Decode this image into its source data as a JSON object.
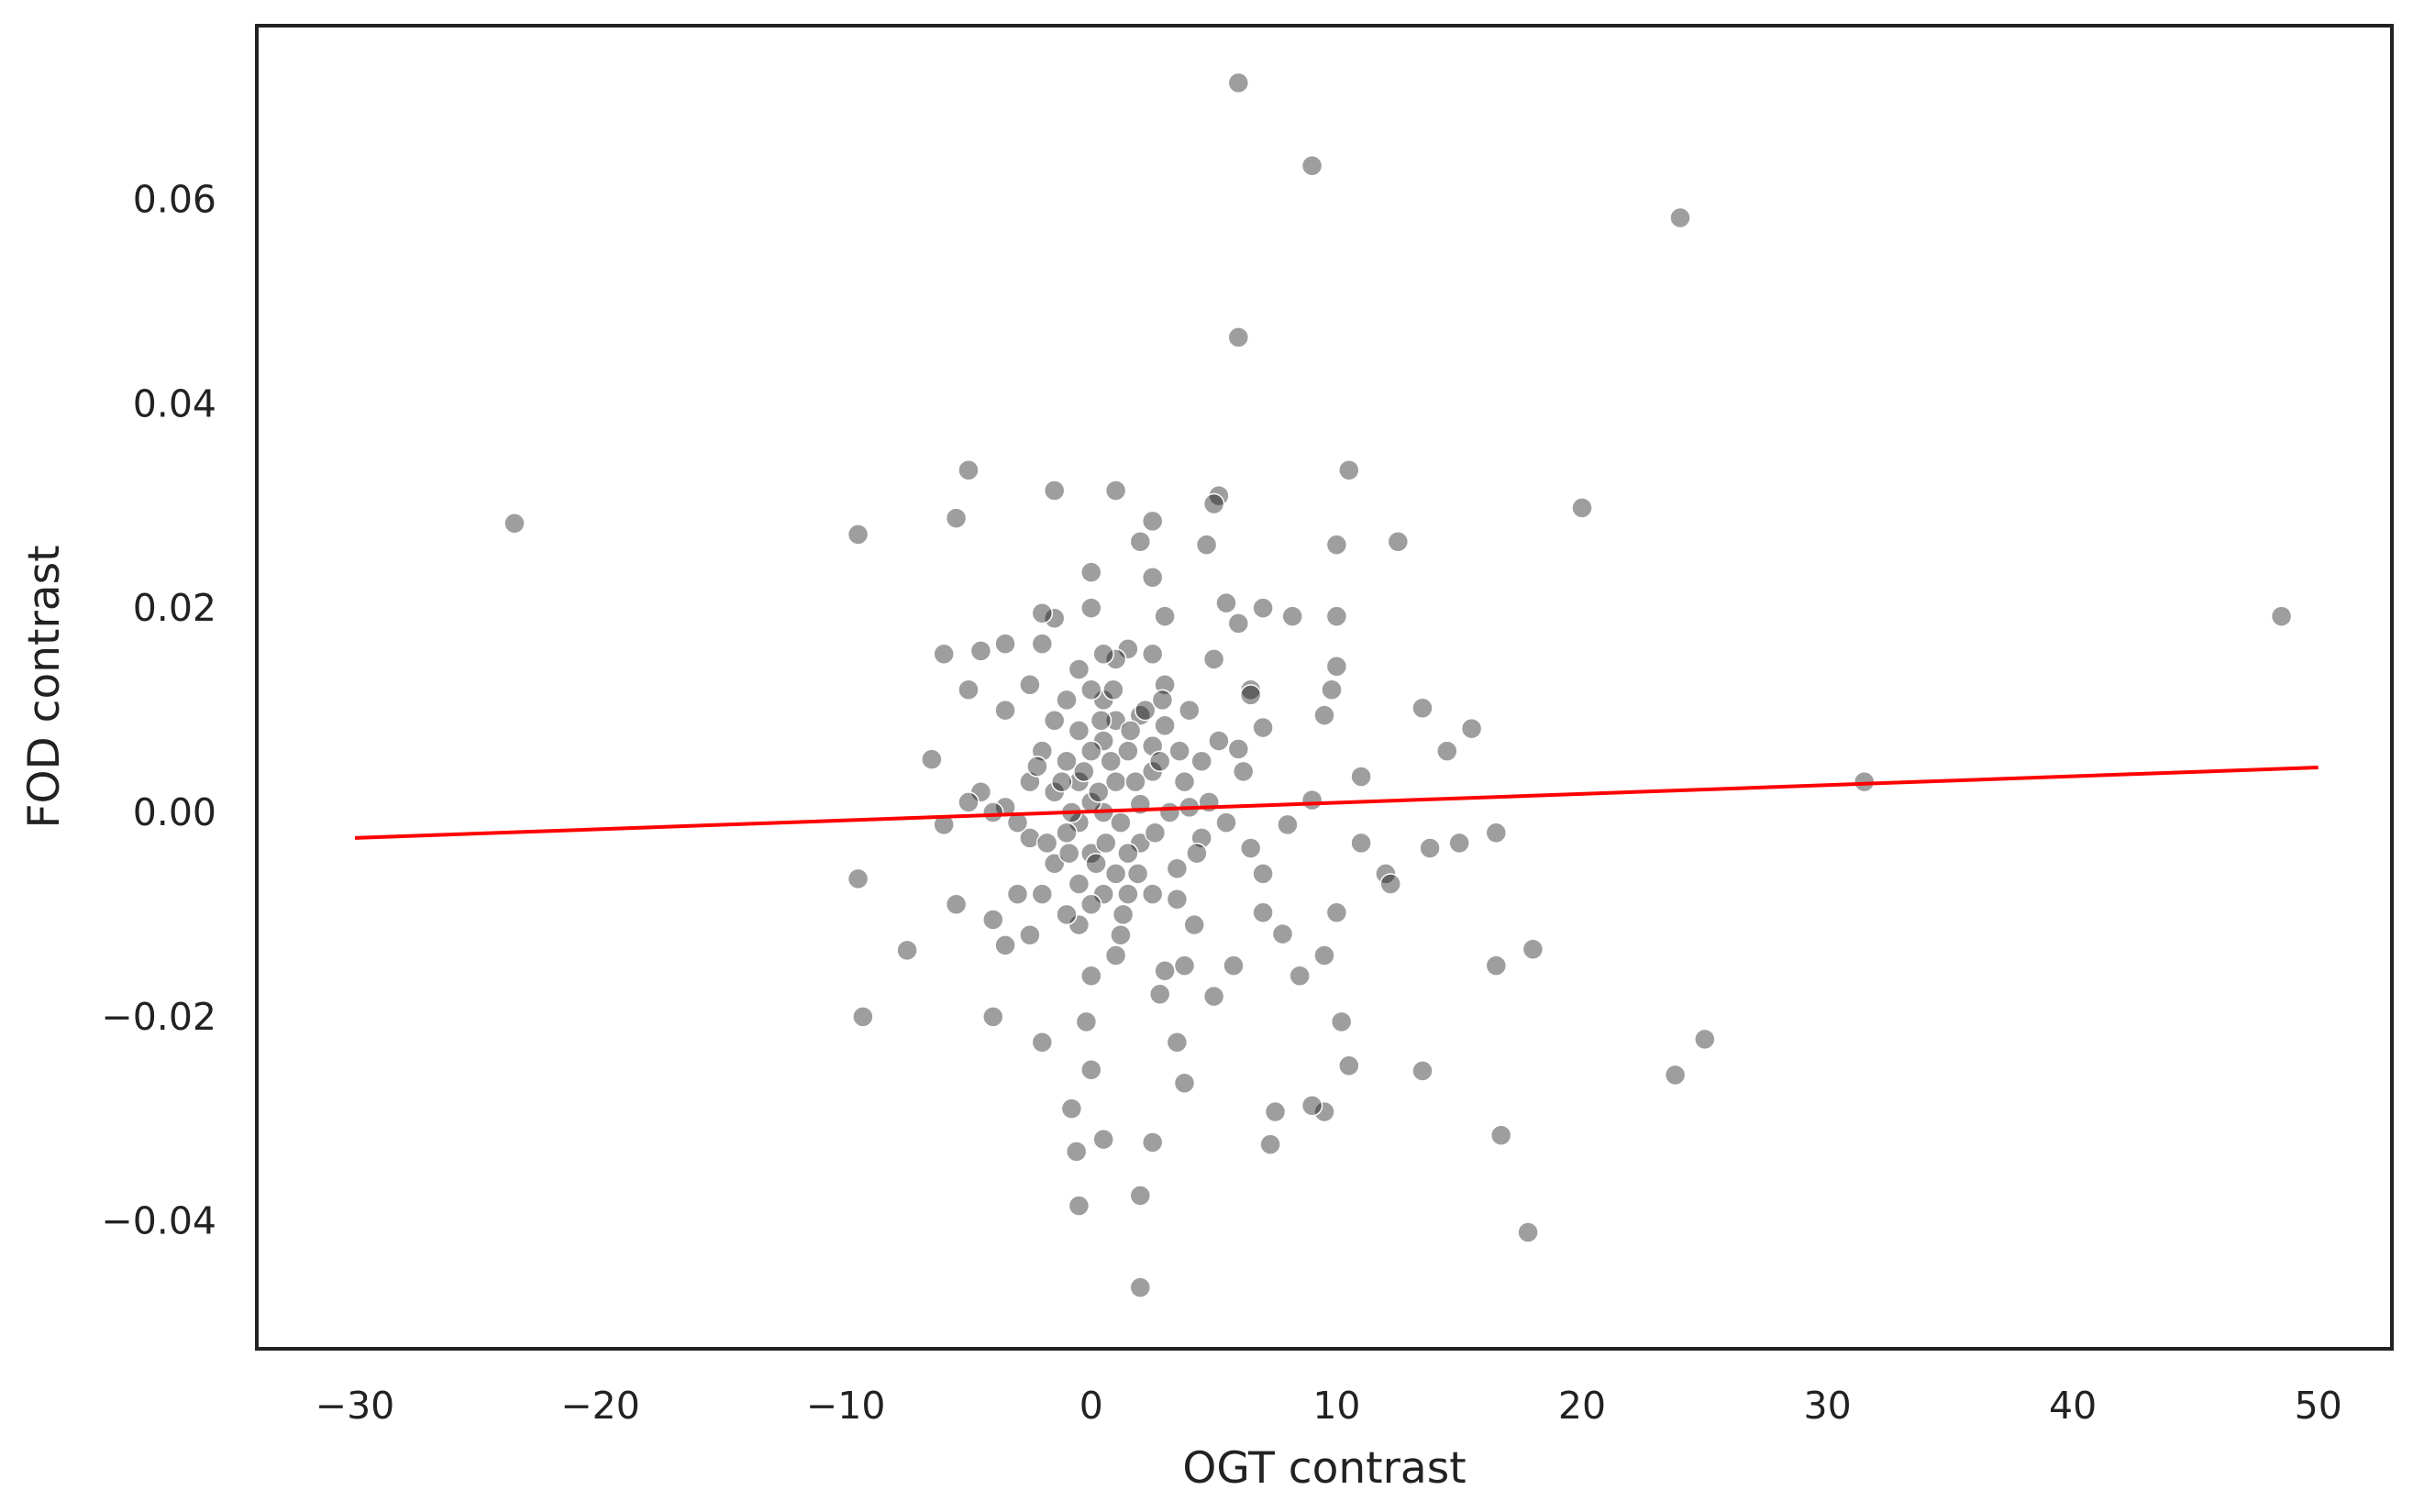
{
  "chart_data": {
    "type": "scatter",
    "title": "",
    "xlabel": "OGT contrast",
    "ylabel": "FOD contrast",
    "xlim": [
      -34,
      53
    ],
    "ylim": [
      -0.0525,
      0.077
    ],
    "x_ticks": [
      -30,
      -20,
      -10,
      0,
      10,
      20,
      30,
      40,
      50
    ],
    "x_tick_labels": [
      "−30",
      "−20",
      "−10",
      "0",
      "10",
      "20",
      "30",
      "40",
      "50"
    ],
    "y_ticks": [
      -0.04,
      -0.02,
      0.0,
      0.02,
      0.04,
      0.06
    ],
    "y_tick_labels": [
      "−0.04",
      "−0.02",
      "0.00",
      "0.02",
      "0.04",
      "0.06"
    ],
    "grid": false,
    "colors": {
      "points": "#000000",
      "point_edge": "#ffffff",
      "fit_line": "#ff0000",
      "frame": "#222222"
    },
    "point_opacity": 0.38,
    "fit_line": {
      "x": [
        -30,
        50
      ],
      "y": [
        -0.0025,
        0.0044
      ]
    },
    "points": [
      [
        -23.5,
        0.0283
      ],
      [
        48.5,
        0.0192
      ],
      [
        31.5,
        0.003
      ],
      [
        6.0,
        0.0714
      ],
      [
        9.0,
        0.0633
      ],
      [
        24.0,
        0.0582
      ],
      [
        6.0,
        0.0465
      ],
      [
        20.0,
        0.0298
      ],
      [
        25.0,
        -0.0222
      ],
      [
        23.8,
        -0.0257
      ],
      [
        17.8,
        -0.0411
      ],
      [
        18.0,
        -0.0134
      ],
      [
        16.7,
        -0.0316
      ],
      [
        16.5,
        -0.015
      ],
      [
        16.5,
        -0.002
      ],
      [
        15.5,
        0.0082
      ],
      [
        15.0,
        -0.003
      ],
      [
        14.5,
        0.006
      ],
      [
        13.5,
        0.0102
      ],
      [
        13.5,
        -0.0253
      ],
      [
        13.8,
        -0.0035
      ],
      [
        12.5,
        0.0265
      ],
      [
        12.0,
        -0.006
      ],
      [
        12.2,
        -0.007
      ],
      [
        11.0,
        0.0035
      ],
      [
        11.0,
        -0.003
      ],
      [
        10.5,
        -0.0248
      ],
      [
        10.5,
        0.0335
      ],
      [
        10.2,
        -0.0205
      ],
      [
        10.0,
        0.0262
      ],
      [
        10.0,
        0.0192
      ],
      [
        10.0,
        0.0143
      ],
      [
        9.8,
        0.012
      ],
      [
        10.0,
        -0.0098
      ],
      [
        9.5,
        -0.014
      ],
      [
        9.5,
        -0.0293
      ],
      [
        9.0,
        -0.0287
      ],
      [
        9.5,
        0.0095
      ],
      [
        9.0,
        0.0012
      ],
      [
        8.5,
        -0.016
      ],
      [
        8.2,
        0.0192
      ],
      [
        8.0,
        -0.0012
      ],
      [
        7.8,
        -0.0119
      ],
      [
        7.5,
        -0.0293
      ],
      [
        7.3,
        -0.0325
      ],
      [
        7.0,
        0.0083
      ],
      [
        7.0,
        -0.006
      ],
      [
        7.0,
        -0.0098
      ],
      [
        7.0,
        0.02
      ],
      [
        6.5,
        0.012
      ],
      [
        6.5,
        0.0115
      ],
      [
        6.5,
        -0.0035
      ],
      [
        6.0,
        0.0185
      ],
      [
        6.0,
        0.0062
      ],
      [
        5.8,
        -0.015
      ],
      [
        5.5,
        0.0205
      ],
      [
        5.2,
        0.031
      ],
      [
        5.0,
        0.0302
      ],
      [
        5.0,
        0.015
      ],
      [
        5.0,
        -0.018
      ],
      [
        4.7,
        0.0262
      ],
      [
        4.5,
        0.005
      ],
      [
        4.5,
        -0.0025
      ],
      [
        4.2,
        -0.011
      ],
      [
        4.0,
        0.01
      ],
      [
        4.0,
        0.0005
      ],
      [
        3.8,
        -0.0265
      ],
      [
        3.8,
        -0.015
      ],
      [
        3.5,
        -0.0225
      ],
      [
        3.5,
        -0.0085
      ],
      [
        3.5,
        -0.0055
      ],
      [
        3.0,
        0.0192
      ],
      [
        3.0,
        0.0125
      ],
      [
        3.0,
        0.0085
      ],
      [
        3.0,
        -0.0155
      ],
      [
        2.8,
        -0.0178
      ],
      [
        2.5,
        0.0285
      ],
      [
        2.5,
        0.023
      ],
      [
        2.5,
        0.0155
      ],
      [
        2.5,
        0.0065
      ],
      [
        2.5,
        0.004
      ],
      [
        2.5,
        -0.008
      ],
      [
        2.5,
        -0.0323
      ],
      [
        2.0,
        0.0265
      ],
      [
        2.0,
        0.0095
      ],
      [
        2.0,
        0.0008
      ],
      [
        2.0,
        -0.003
      ],
      [
        2.0,
        -0.0375
      ],
      [
        2.0,
        -0.0465
      ],
      [
        1.5,
        0.016
      ],
      [
        1.5,
        0.006
      ],
      [
        1.5,
        -0.004
      ],
      [
        1.5,
        -0.008
      ],
      [
        1.2,
        -0.012
      ],
      [
        1.0,
        0.0315
      ],
      [
        1.0,
        0.015
      ],
      [
        1.0,
        0.009
      ],
      [
        1.0,
        0.003
      ],
      [
        1.0,
        -0.006
      ],
      [
        1.0,
        -0.014
      ],
      [
        0.5,
        0.0155
      ],
      [
        0.5,
        0.011
      ],
      [
        0.5,
        0.007
      ],
      [
        0.5,
        0.0
      ],
      [
        0.5,
        -0.008
      ],
      [
        0.5,
        -0.032
      ],
      [
        0.0,
        0.0235
      ],
      [
        0.0,
        0.02
      ],
      [
        0.0,
        0.012
      ],
      [
        0.0,
        0.006
      ],
      [
        0.0,
        0.001
      ],
      [
        0.0,
        -0.004
      ],
      [
        0.0,
        -0.009
      ],
      [
        0.0,
        -0.016
      ],
      [
        0.0,
        -0.0252
      ],
      [
        -0.2,
        -0.0205
      ],
      [
        -0.5,
        0.014
      ],
      [
        -0.5,
        0.008
      ],
      [
        -0.5,
        0.003
      ],
      [
        -0.5,
        -0.001
      ],
      [
        -0.5,
        -0.007
      ],
      [
        -0.5,
        -0.011
      ],
      [
        -0.5,
        -0.0385
      ],
      [
        -0.6,
        -0.0332
      ],
      [
        -0.8,
        -0.029
      ],
      [
        -1.0,
        0.011
      ],
      [
        -1.0,
        0.005
      ],
      [
        -1.0,
        -0.002
      ],
      [
        -1.0,
        -0.01
      ],
      [
        -1.5,
        0.0315
      ],
      [
        -1.5,
        0.019
      ],
      [
        -1.5,
        0.009
      ],
      [
        -1.5,
        0.002
      ],
      [
        -1.5,
        -0.005
      ],
      [
        -2.0,
        0.0195
      ],
      [
        -2.0,
        0.0165
      ],
      [
        -2.0,
        0.006
      ],
      [
        -2.0,
        -0.008
      ],
      [
        -2.0,
        -0.0225
      ],
      [
        -2.5,
        0.0125
      ],
      [
        -2.5,
        0.003
      ],
      [
        -2.5,
        -0.0025
      ],
      [
        -2.5,
        -0.012
      ],
      [
        -3.0,
        -0.008
      ],
      [
        -3.5,
        0.0165
      ],
      [
        -3.5,
        0.01
      ],
      [
        -3.5,
        0.0005
      ],
      [
        -3.5,
        -0.013
      ],
      [
        -4.0,
        0.0
      ],
      [
        -4.0,
        -0.0105
      ],
      [
        -4.0,
        -0.02
      ],
      [
        -4.5,
        0.0158
      ],
      [
        -4.5,
        0.002
      ],
      [
        -5.0,
        0.0335
      ],
      [
        -5.0,
        0.012
      ],
      [
        -5.0,
        0.001
      ],
      [
        -5.5,
        0.0288
      ],
      [
        -5.5,
        -0.009
      ],
      [
        -6.0,
        0.0155
      ],
      [
        -6.0,
        -0.0012
      ],
      [
        -6.5,
        0.0052
      ],
      [
        -7.5,
        -0.0135
      ],
      [
        -9.3,
        -0.02
      ],
      [
        -9.5,
        0.0272
      ],
      [
        -9.5,
        -0.0065
      ],
      [
        0.3,
        0.002
      ],
      [
        0.8,
        0.005
      ],
      [
        1.2,
        -0.001
      ],
      [
        -0.3,
        0.004
      ],
      [
        0.6,
        -0.003
      ],
      [
        1.8,
        0.003
      ],
      [
        2.2,
        0.01
      ],
      [
        2.8,
        0.005
      ],
      [
        3.2,
        0.0
      ],
      [
        3.8,
        0.003
      ],
      [
        4.8,
        0.001
      ],
      [
        5.5,
        -0.001
      ],
      [
        6.2,
        0.004
      ],
      [
        -0.8,
        0.0
      ],
      [
        -1.2,
        0.003
      ],
      [
        -1.8,
        -0.003
      ],
      [
        0.2,
        -0.005
      ],
      [
        1.6,
        0.008
      ],
      [
        2.6,
        -0.002
      ],
      [
        3.6,
        0.006
      ],
      [
        -2.2,
        0.0045
      ],
      [
        -3.0,
        -0.001
      ],
      [
        0.9,
        0.012
      ],
      [
        1.9,
        -0.006
      ],
      [
        4.3,
        -0.004
      ],
      [
        5.2,
        0.007
      ],
      [
        -0.9,
        -0.004
      ],
      [
        0.4,
        0.009
      ],
      [
        1.3,
        -0.01
      ],
      [
        2.9,
        0.011
      ]
    ]
  }
}
